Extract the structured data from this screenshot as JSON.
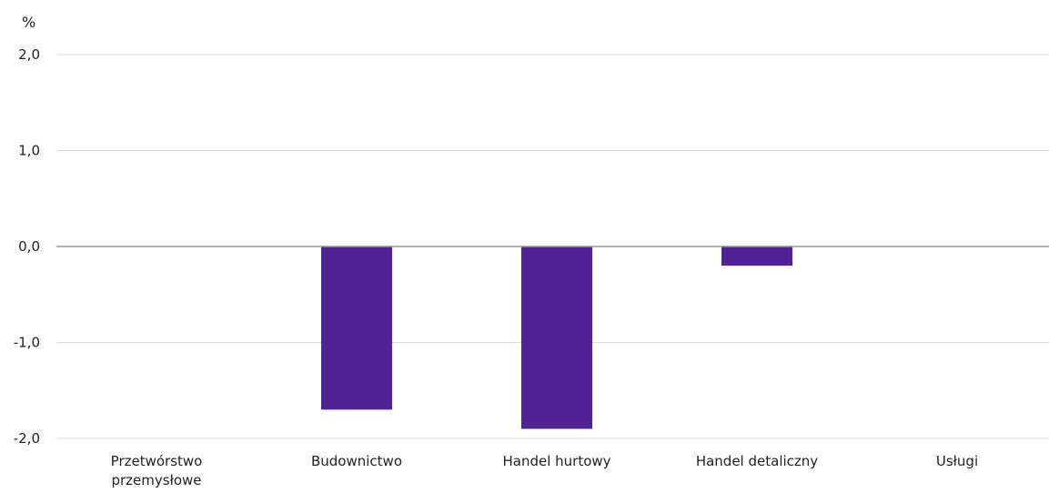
{
  "chart_data": {
    "type": "bar",
    "title": "",
    "xlabel": "",
    "ylabel": "%",
    "ylim": [
      -2.0,
      2.0
    ],
    "yticks": [
      "2,0",
      "1,0",
      "0,0",
      "-1,0",
      "-2,0"
    ],
    "ytick_values": [
      2.0,
      1.0,
      0.0,
      -1.0,
      -2.0
    ],
    "categories": [
      [
        "Przetwórstwo",
        "przemysłowe"
      ],
      [
        "Budownictwo"
      ],
      [
        "Handel hurtowy"
      ],
      [
        "Handel detaliczny"
      ],
      [
        "Usługi"
      ]
    ],
    "values": [
      0.0,
      -1.7,
      -1.9,
      -0.2,
      0.0
    ],
    "grid": true,
    "legend": "none",
    "colors": {
      "bar": "#512293",
      "gridline": "#dddddd",
      "zero_line": "#999999",
      "text": "#222222"
    }
  }
}
